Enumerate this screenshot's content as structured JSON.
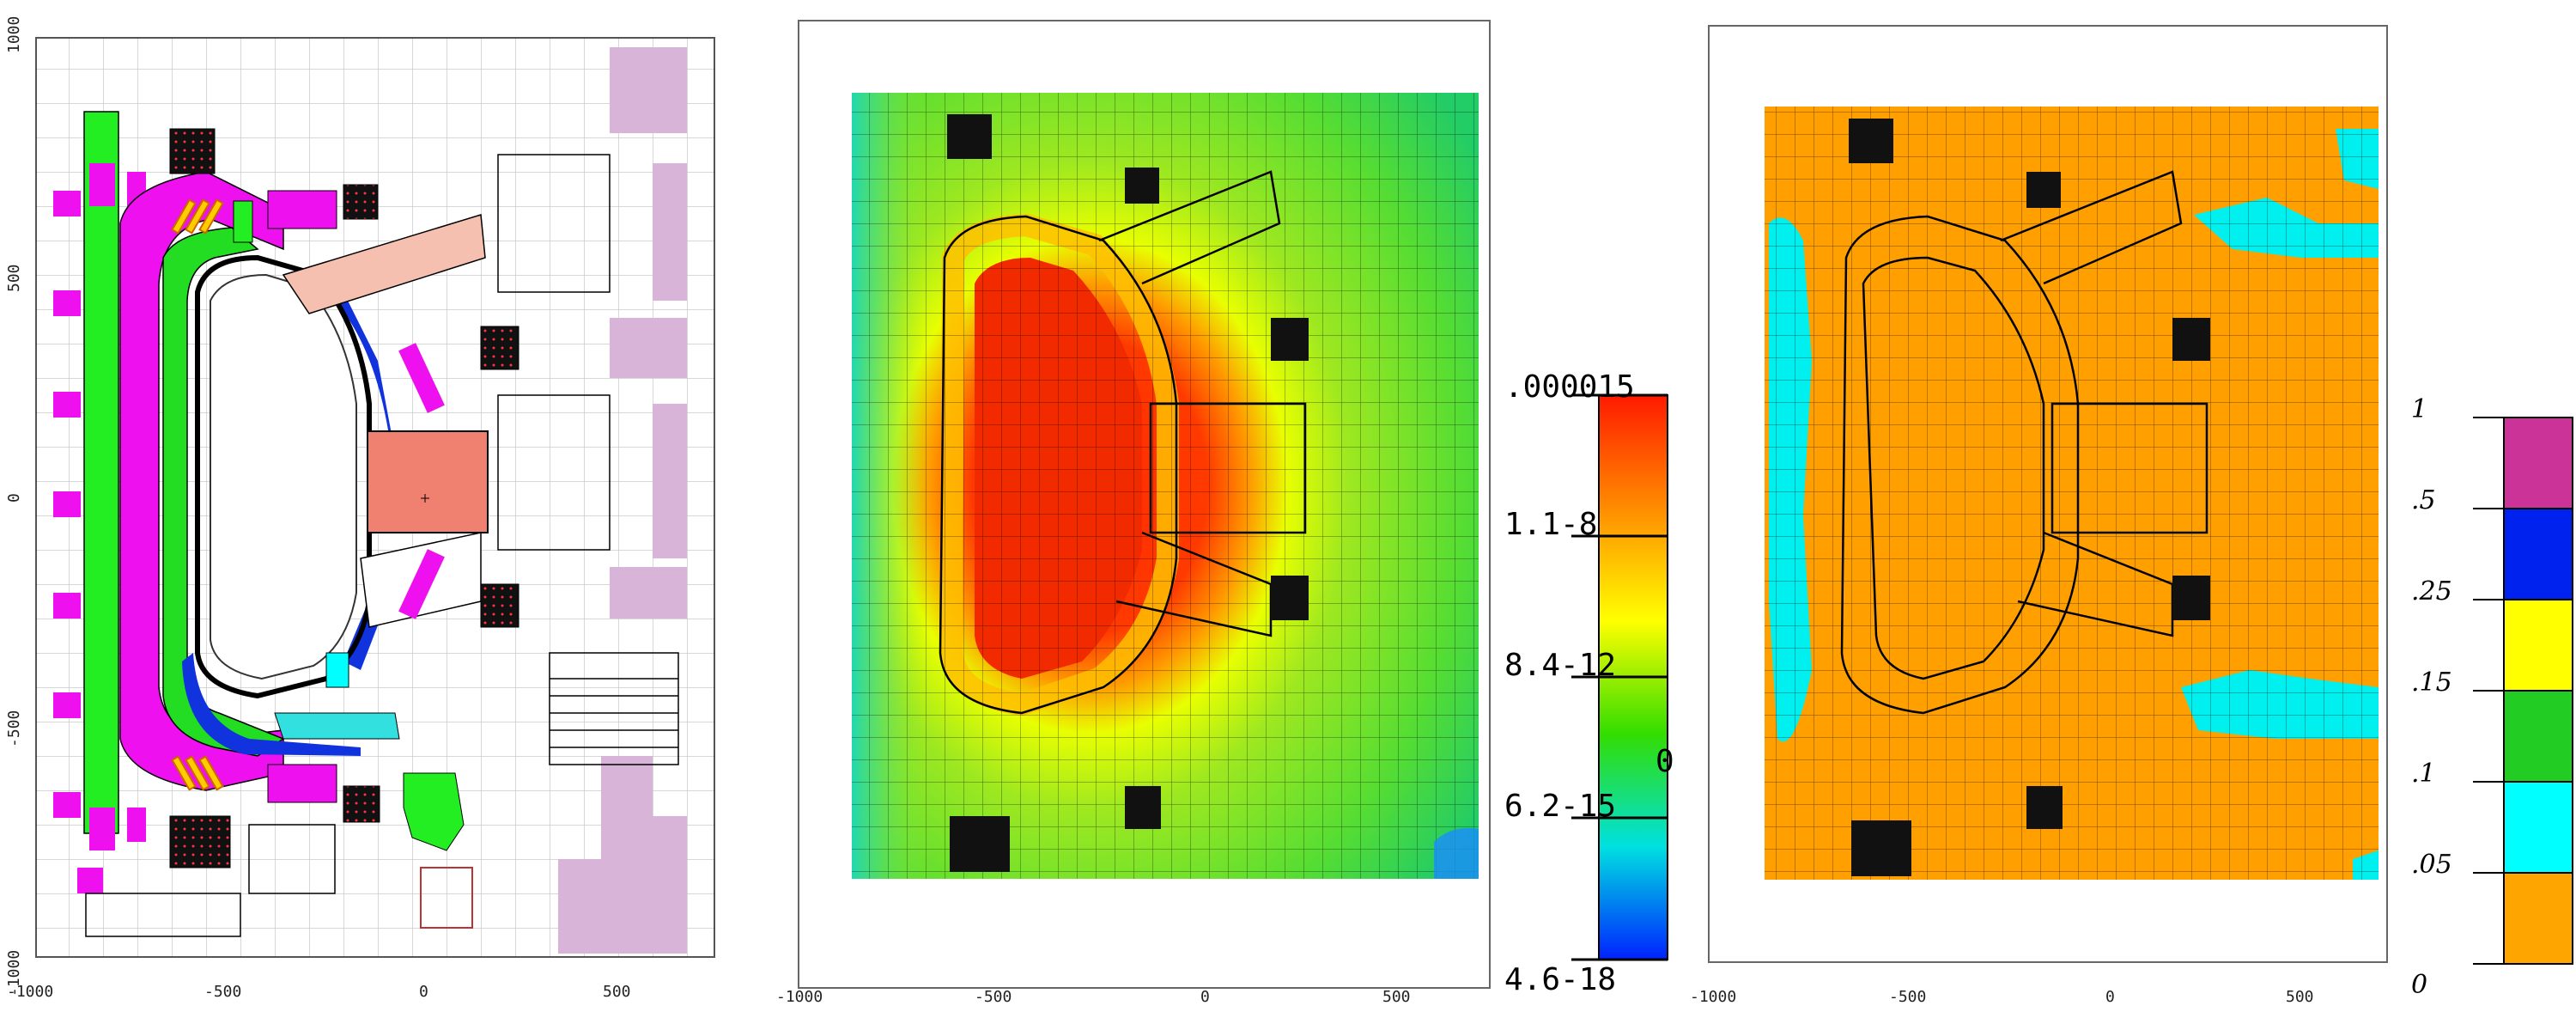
{
  "panel_left": {
    "x_ticks": [
      "-1000",
      "-500",
      "0",
      "500"
    ],
    "y_ticks": [
      "1000",
      "500",
      "0",
      "-500",
      "-1000"
    ]
  },
  "panel_middle": {
    "x_ticks": [
      "-1000",
      "-500",
      "0",
      "500"
    ],
    "colorbar": {
      "labels": [
        ".000015",
        "1.1-8",
        "8.4-12",
        "6.2-15",
        "4.6-18"
      ],
      "side_mark": "0",
      "colors": [
        "#ff2000",
        "#ff8c00",
        "#ffff00",
        "#3cd000",
        "#00e0e0",
        "#0040ff"
      ]
    }
  },
  "panel_right": {
    "x_ticks": [
      "-1000",
      "-500",
      "0",
      "500"
    ],
    "legend": {
      "labels": [
        "1",
        ".5",
        ".25",
        ".15",
        ".1",
        ".05",
        "0"
      ],
      "colors": [
        "#cc3399",
        "#0022ee",
        "#ffff00",
        "#22cc22",
        "#00ffff",
        "#ffa500"
      ]
    }
  },
  "colors": {
    "flux_bg": "#9ee820",
    "flux_core": "#f22a00",
    "ratio_bg": "#ffa000",
    "ratio_cyan": "#00f0f0",
    "magenta": "#ee10ee",
    "green": "#22ee22",
    "blue": "#1133dd",
    "salmon": "#f08070",
    "lilac": "#d8b4d8"
  }
}
